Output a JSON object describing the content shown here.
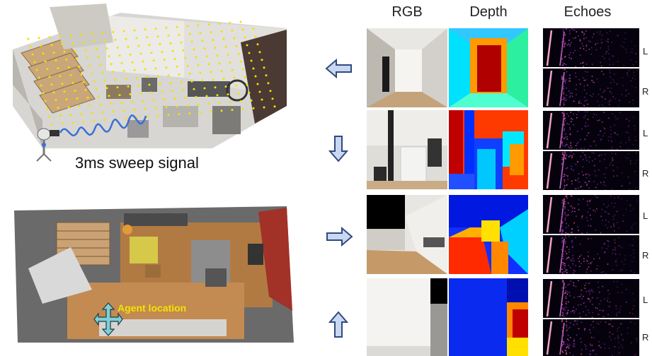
{
  "columns": {
    "rgb": "RGB",
    "depth": "Depth",
    "echoes": "Echoes"
  },
  "channels": {
    "left": "L",
    "right": "R"
  },
  "scene": {
    "sweep_label": "3ms sweep signal",
    "agent_label": "Agent location"
  },
  "rows": [
    {
      "action": "left-arrow-icon"
    },
    {
      "action": "down-arrow-icon"
    },
    {
      "action": "right-arrow-icon"
    },
    {
      "action": "up-arrow-icon"
    }
  ],
  "colors": {
    "arrow_fill": "#c9d7f0",
    "arrow_stroke": "#2f4a80",
    "sample_dot": "#f5e000",
    "depth_far": "#1a2cff",
    "depth_near": "#c00000",
    "agent_cross": "#7fd0d6"
  }
}
